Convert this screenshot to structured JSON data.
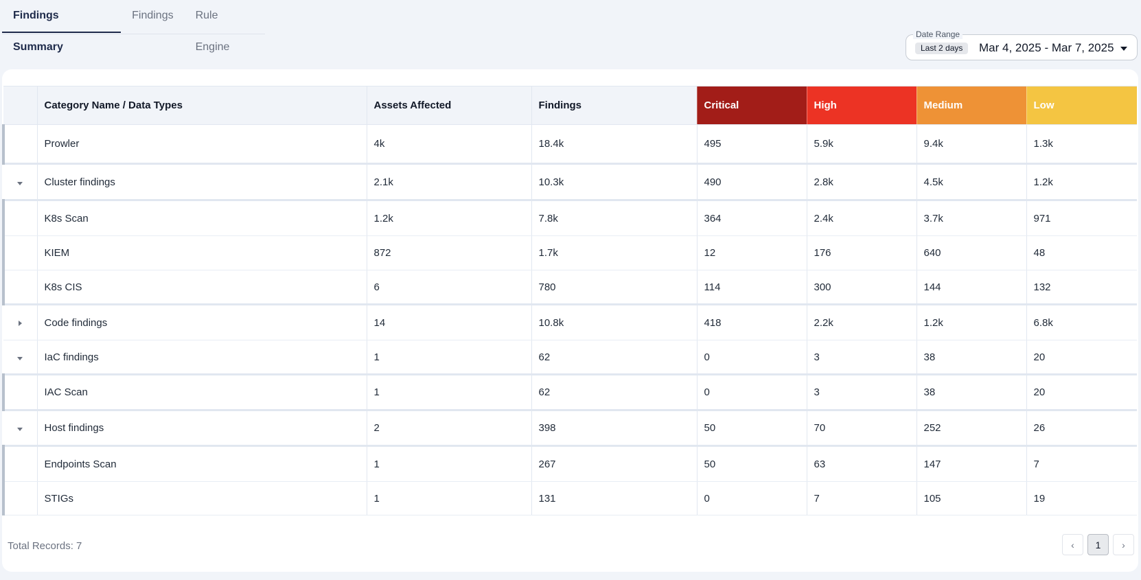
{
  "tabs": [
    {
      "label": "Findings Summary",
      "active": true
    },
    {
      "label": "Findings",
      "active": false
    },
    {
      "label": "Rule Engine",
      "active": false
    }
  ],
  "date_range": {
    "label": "Date Range",
    "chip": "Last 2 days",
    "value": "Mar 4, 2025 - Mar 7, 2025"
  },
  "table": {
    "headers": {
      "category": "Category Name / Data Types",
      "assets": "Assets Affected",
      "findings": "Findings",
      "critical": "Critical",
      "high": "High",
      "medium": "Medium",
      "low": "Low"
    },
    "severity_colors": {
      "critical": "#a21d18",
      "high": "#ec3324",
      "medium": "#ee9236",
      "low": "#f4c542"
    },
    "rows": [
      {
        "name": "Prowler",
        "assets": "4k",
        "findings": "18.4k",
        "critical": "495",
        "high": "5.9k",
        "medium": "9.4k",
        "low": "1.3k"
      },
      {
        "name": "Cluster findings",
        "assets": "2.1k",
        "findings": "10.3k",
        "critical": "490",
        "high": "2.8k",
        "medium": "4.5k",
        "low": "1.2k"
      },
      {
        "name": "K8s Scan",
        "assets": "1.2k",
        "findings": "7.8k",
        "critical": "364",
        "high": "2.4k",
        "medium": "3.7k",
        "low": "971"
      },
      {
        "name": "KIEM",
        "assets": "872",
        "findings": "1.7k",
        "critical": "12",
        "high": "176",
        "medium": "640",
        "low": "48"
      },
      {
        "name": "K8s CIS",
        "assets": "6",
        "findings": "780",
        "critical": "114",
        "high": "300",
        "medium": "144",
        "low": "132"
      },
      {
        "name": "Code findings",
        "assets": "14",
        "findings": "10.8k",
        "critical": "418",
        "high": "2.2k",
        "medium": "1.2k",
        "low": "6.8k"
      },
      {
        "name": "IaC findings",
        "assets": "1",
        "findings": "62",
        "critical": "0",
        "high": "3",
        "medium": "38",
        "low": "20"
      },
      {
        "name": "IAC Scan",
        "assets": "1",
        "findings": "62",
        "critical": "0",
        "high": "3",
        "medium": "38",
        "low": "20"
      },
      {
        "name": "Host findings",
        "assets": "2",
        "findings": "398",
        "critical": "50",
        "high": "70",
        "medium": "252",
        "low": "26"
      },
      {
        "name": "Endpoints Scan",
        "assets": "1",
        "findings": "267",
        "critical": "50",
        "high": "63",
        "medium": "147",
        "low": "7"
      },
      {
        "name": "STIGs",
        "assets": "1",
        "findings": "131",
        "critical": "0",
        "high": "7",
        "medium": "105",
        "low": "19"
      }
    ]
  },
  "footer": {
    "total_records": "Total Records: 7",
    "current_page": "1",
    "prev_icon": "‹",
    "next_icon": "›"
  }
}
